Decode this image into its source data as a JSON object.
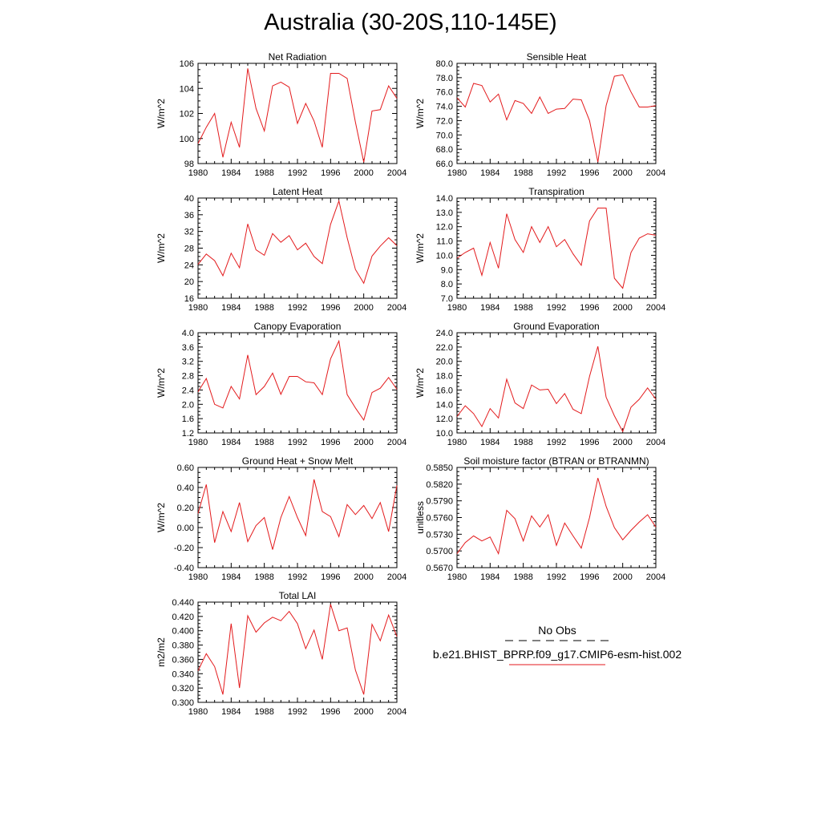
{
  "title": "Australia (30-20S,110-145E)",
  "legend": {
    "obs_label": "No Obs",
    "obs_color": "#000000",
    "model_label": "b.e21.BHIST_BPRP.f09_g17.CMIP6-esm-hist.002",
    "model_color": "#e31a1c"
  },
  "chart_data": [
    {
      "type": "line",
      "title": "Net Radiation",
      "ylabel": "W/m^2",
      "xlim": [
        1980,
        2004
      ],
      "ylim": [
        98,
        106
      ],
      "xticks": [
        "1980",
        "1984",
        "1988",
        "1992",
        "1996",
        "2000",
        "2004"
      ],
      "yticks": [
        "98",
        "100",
        "102",
        "104",
        "106"
      ],
      "x": [
        1980,
        1981,
        1982,
        1983,
        1984,
        1985,
        1986,
        1987,
        1988,
        1989,
        1990,
        1991,
        1992,
        1993,
        1994,
        1995,
        1996,
        1997,
        1998,
        1999,
        2000,
        2001,
        2002,
        2003,
        2004
      ],
      "series": [
        {
          "values": [
            99.6,
            100.9,
            102.0,
            98.5,
            101.3,
            99.3,
            105.6,
            102.4,
            100.6,
            104.2,
            104.5,
            104.1,
            101.2,
            102.8,
            101.4,
            99.3,
            105.2,
            105.2,
            104.8,
            101.3,
            98.1,
            102.2,
            102.3,
            104.2,
            103.2
          ]
        }
      ]
    },
    {
      "type": "line",
      "title": "Sensible Heat",
      "ylabel": "W/m^2",
      "xlim": [
        1980,
        2004
      ],
      "ylim": [
        66.0,
        80.0
      ],
      "xticks": [
        "1980",
        "1984",
        "1988",
        "1992",
        "1996",
        "2000",
        "2004"
      ],
      "yticks": [
        "66.0",
        "68.0",
        "70.0",
        "72.0",
        "74.0",
        "76.0",
        "78.0",
        "80.0"
      ],
      "x": [
        1980,
        1981,
        1982,
        1983,
        1984,
        1985,
        1986,
        1987,
        1988,
        1989,
        1990,
        1991,
        1992,
        1993,
        1994,
        1995,
        1996,
        1997,
        1998,
        1999,
        2000,
        2001,
        2002,
        2003,
        2004
      ],
      "series": [
        {
          "values": [
            75.2,
            73.9,
            77.2,
            76.9,
            74.6,
            75.7,
            72.1,
            74.8,
            74.4,
            73.0,
            75.3,
            73.0,
            73.6,
            73.7,
            75.0,
            74.9,
            72.0,
            66.2,
            74.1,
            78.2,
            78.4,
            76.0,
            73.9,
            73.9,
            74.1
          ]
        }
      ]
    },
    {
      "type": "line",
      "title": "Latent Heat",
      "ylabel": "W/m^2",
      "xlim": [
        1980,
        2004
      ],
      "ylim": [
        16,
        40
      ],
      "xticks": [
        "1980",
        "1984",
        "1988",
        "1992",
        "1996",
        "2000",
        "2004"
      ],
      "yticks": [
        "16",
        "20",
        "24",
        "28",
        "32",
        "36",
        "40"
      ],
      "x": [
        1980,
        1981,
        1982,
        1983,
        1984,
        1985,
        1986,
        1987,
        1988,
        1989,
        1990,
        1991,
        1992,
        1993,
        1994,
        1995,
        1996,
        1997,
        1998,
        1999,
        2000,
        2001,
        2002,
        2003,
        2004
      ],
      "series": [
        {
          "values": [
            24.1,
            26.6,
            25.0,
            21.4,
            26.8,
            23.3,
            33.8,
            27.6,
            26.3,
            31.5,
            29.4,
            31.0,
            27.6,
            29.2,
            26.0,
            24.3,
            33.7,
            39.3,
            30.5,
            22.9,
            19.6,
            26.1,
            28.5,
            30.5,
            28.6
          ]
        }
      ]
    },
    {
      "type": "line",
      "title": "Transpiration",
      "ylabel": "W/m^2",
      "xlim": [
        1980,
        2004
      ],
      "ylim": [
        7.0,
        14.0
      ],
      "xticks": [
        "1980",
        "1984",
        "1988",
        "1992",
        "1996",
        "2000",
        "2004"
      ],
      "yticks": [
        "7.0",
        "8.0",
        "9.0",
        "10.0",
        "11.0",
        "12.0",
        "13.0",
        "14.0"
      ],
      "x": [
        1980,
        1981,
        1982,
        1983,
        1984,
        1985,
        1986,
        1987,
        1988,
        1989,
        1990,
        1991,
        1992,
        1993,
        1994,
        1995,
        1996,
        1997,
        1998,
        1999,
        2000,
        2001,
        2002,
        2003,
        2004
      ],
      "series": [
        {
          "values": [
            9.8,
            10.2,
            10.5,
            8.6,
            10.9,
            9.1,
            12.9,
            11.1,
            10.2,
            12.0,
            10.9,
            12.0,
            10.6,
            11.1,
            10.1,
            9.3,
            12.4,
            13.3,
            13.3,
            8.4,
            7.7,
            10.2,
            11.2,
            11.5,
            11.4
          ]
        }
      ]
    },
    {
      "type": "line",
      "title": "Canopy Evaporation",
      "ylabel": "W/m^2",
      "xlim": [
        1980,
        2004
      ],
      "ylim": [
        1.2,
        4.0
      ],
      "xticks": [
        "1980",
        "1984",
        "1988",
        "1992",
        "1996",
        "2000",
        "2004"
      ],
      "yticks": [
        "1.2",
        "1.6",
        "2.0",
        "2.4",
        "2.8",
        "3.2",
        "3.6",
        "4.0"
      ],
      "x": [
        1980,
        1981,
        1982,
        1983,
        1984,
        1985,
        1986,
        1987,
        1988,
        1989,
        1990,
        1991,
        1992,
        1993,
        1994,
        1995,
        1996,
        1997,
        1998,
        1999,
        2000,
        2001,
        2002,
        2003,
        2004
      ],
      "series": [
        {
          "values": [
            2.35,
            2.72,
            2.0,
            1.9,
            2.5,
            2.15,
            3.38,
            2.27,
            2.5,
            2.87,
            2.28,
            2.78,
            2.78,
            2.63,
            2.6,
            2.27,
            3.27,
            3.77,
            2.27,
            1.9,
            1.56,
            2.33,
            2.45,
            2.75,
            2.42
          ]
        }
      ]
    },
    {
      "type": "line",
      "title": "Ground Evaporation",
      "ylabel": "W/m^2",
      "xlim": [
        1980,
        2004
      ],
      "ylim": [
        10.0,
        24.0
      ],
      "xticks": [
        "1980",
        "1984",
        "1988",
        "1992",
        "1996",
        "2000",
        "2004"
      ],
      "yticks": [
        "10.0",
        "12.0",
        "14.0",
        "16.0",
        "18.0",
        "20.0",
        "22.0",
        "24.0"
      ],
      "x": [
        1980,
        1981,
        1982,
        1983,
        1984,
        1985,
        1986,
        1987,
        1988,
        1989,
        1990,
        1991,
        1992,
        1993,
        1994,
        1995,
        1996,
        1997,
        1998,
        1999,
        2000,
        2001,
        2002,
        2003,
        2004
      ],
      "series": [
        {
          "values": [
            12.3,
            13.8,
            12.7,
            10.9,
            13.4,
            12.1,
            17.5,
            14.2,
            13.4,
            16.7,
            16.0,
            16.1,
            14.1,
            15.5,
            13.3,
            12.7,
            17.9,
            22.1,
            15.0,
            12.4,
            10.2,
            13.6,
            14.7,
            16.3,
            14.7
          ]
        }
      ]
    },
    {
      "type": "line",
      "title": "Ground Heat + Snow Melt",
      "ylabel": "W/m^2",
      "xlim": [
        1980,
        2004
      ],
      "ylim": [
        -0.4,
        0.6
      ],
      "xticks": [
        "1980",
        "1984",
        "1988",
        "1992",
        "1996",
        "2000",
        "2004"
      ],
      "yticks": [
        "-0.40",
        "-0.20",
        "0.00",
        "0.20",
        "0.40",
        "0.60"
      ],
      "x": [
        1980,
        1981,
        1982,
        1983,
        1984,
        1985,
        1986,
        1987,
        1988,
        1989,
        1990,
        1991,
        1992,
        1993,
        1994,
        1995,
        1996,
        1997,
        1998,
        1999,
        2000,
        2001,
        2002,
        2003,
        2004
      ],
      "series": [
        {
          "values": [
            0.14,
            0.43,
            -0.15,
            0.16,
            -0.04,
            0.25,
            -0.14,
            0.02,
            0.1,
            -0.22,
            0.1,
            0.31,
            0.1,
            -0.08,
            0.48,
            0.16,
            0.11,
            -0.09,
            0.23,
            0.13,
            0.22,
            0.09,
            0.25,
            -0.04,
            0.42
          ]
        }
      ]
    },
    {
      "type": "line",
      "title": "Soil moisture factor (BTRAN or BTRANMN)",
      "ylabel": "unitless",
      "xlim": [
        1980,
        2004
      ],
      "ylim": [
        0.567,
        0.585
      ],
      "xticks": [
        "1980",
        "1984",
        "1988",
        "1992",
        "1996",
        "2000",
        "2004"
      ],
      "yticks": [
        "0.5670",
        "0.5700",
        "0.5730",
        "0.5760",
        "0.5790",
        "0.5820",
        "0.5850"
      ],
      "x": [
        1980,
        1981,
        1982,
        1983,
        1984,
        1985,
        1986,
        1987,
        1988,
        1989,
        1990,
        1991,
        1992,
        1993,
        1994,
        1995,
        1996,
        1997,
        1998,
        1999,
        2000,
        2001,
        2002,
        2003,
        2004
      ],
      "series": [
        {
          "values": [
            0.5695,
            0.5715,
            0.5727,
            0.5718,
            0.5725,
            0.5695,
            0.5773,
            0.5758,
            0.5718,
            0.5763,
            0.5743,
            0.5765,
            0.571,
            0.575,
            0.5727,
            0.5705,
            0.576,
            0.5831,
            0.578,
            0.5742,
            0.572,
            0.5737,
            0.5752,
            0.5765,
            0.5743
          ]
        }
      ]
    },
    {
      "type": "line",
      "title": "Total LAI",
      "ylabel": "m2/m2",
      "xlim": [
        1980,
        2004
      ],
      "ylim": [
        0.3,
        0.44
      ],
      "xticks": [
        "1980",
        "1984",
        "1988",
        "1992",
        "1996",
        "2000",
        "2004"
      ],
      "yticks": [
        "0.300",
        "0.320",
        "0.340",
        "0.360",
        "0.380",
        "0.400",
        "0.420",
        "0.440"
      ],
      "x": [
        1980,
        1981,
        1982,
        1983,
        1984,
        1985,
        1986,
        1987,
        1988,
        1989,
        1990,
        1991,
        1992,
        1993,
        1994,
        1995,
        1996,
        1997,
        1998,
        1999,
        2000,
        2001,
        2002,
        2003,
        2004
      ],
      "series": [
        {
          "values": [
            0.344,
            0.368,
            0.35,
            0.311,
            0.41,
            0.32,
            0.421,
            0.398,
            0.411,
            0.419,
            0.414,
            0.427,
            0.41,
            0.375,
            0.401,
            0.36,
            0.437,
            0.4,
            0.404,
            0.345,
            0.311,
            0.409,
            0.386,
            0.422,
            0.392
          ]
        }
      ]
    }
  ]
}
